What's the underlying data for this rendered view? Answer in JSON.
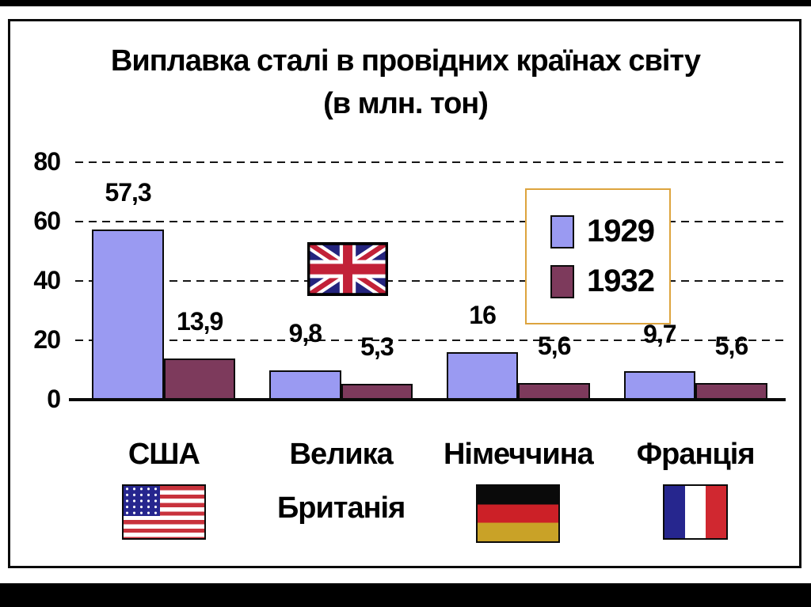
{
  "slide": {
    "title_line1": "Виплавка сталі в провідних країнах світу",
    "title_line2": "(в млн. тон)"
  },
  "chart_data": {
    "type": "bar",
    "title": "Виплавка сталі в провідних країнах світу (в млн. тон)",
    "categories": [
      "США",
      "Велика Британія",
      "Німеччина",
      "Франція"
    ],
    "series": [
      {
        "name": "1929",
        "color": "#9a9af2",
        "values": [
          57.3,
          9.8,
          16,
          9.7
        ],
        "labels": [
          "57,3",
          "9,8",
          "16",
          "9,7"
        ]
      },
      {
        "name": "1932",
        "color": "#7d3a5c",
        "values": [
          13.9,
          5.3,
          5.6,
          5.6
        ],
        "labels": [
          "13,9",
          "5,3",
          "5,6",
          "5,6"
        ]
      }
    ],
    "xlabel": "",
    "ylabel": "",
    "ylim": [
      0,
      80
    ],
    "yticks": [
      0,
      20,
      40,
      60,
      80
    ],
    "grid": "dashed-horizontal",
    "legend_position": "upper-right"
  },
  "legend": {
    "border_color": "#dda43e",
    "items": [
      {
        "label": "1929",
        "color": "#9a9af2"
      },
      {
        "label": "1932",
        "color": "#7d3a5c"
      }
    ]
  },
  "categories": [
    {
      "line1": "США",
      "flag": "usa-flag"
    },
    {
      "line1": "Велика",
      "line2": "Британія",
      "flag": "uk-flag"
    },
    {
      "line1": "Німеччина",
      "flag": "germany-flag"
    },
    {
      "line1": "Франція",
      "flag": "france-flag"
    }
  ],
  "colors": {
    "background": "#ffffff",
    "frame": "#000000",
    "grid": "#161616",
    "bar_border": "#0a0a0a"
  }
}
